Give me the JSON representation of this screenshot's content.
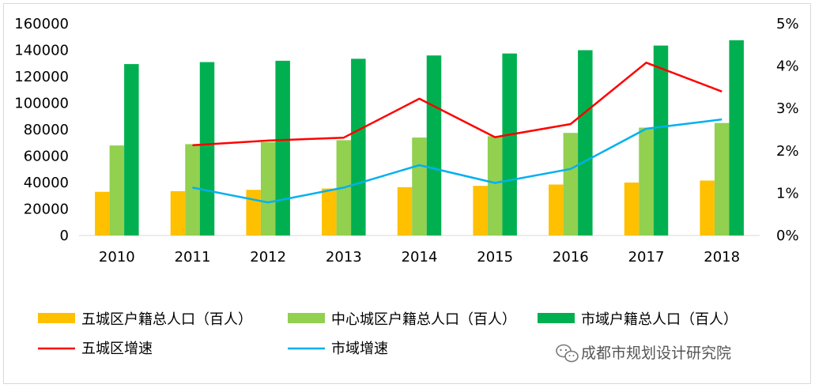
{
  "chart_data": {
    "type": "bar",
    "categories": [
      "2010",
      "2011",
      "2012",
      "2013",
      "2014",
      "2015",
      "2016",
      "2017",
      "2018"
    ],
    "series": [
      {
        "name": "五城区户籍总人口（百人）",
        "kind": "bar",
        "axis": "left",
        "color": "#FFC000",
        "values": [
          33000,
          33500,
          34500,
          35500,
          36500,
          37500,
          38500,
          40000,
          41500
        ]
      },
      {
        "name": "中心城区户籍总人口（百人）",
        "kind": "bar",
        "axis": "left",
        "color": "#92D050",
        "values": [
          68000,
          69000,
          70500,
          72000,
          74000,
          75000,
          77500,
          81500,
          85000
        ]
      },
      {
        "name": "市域户籍总人口（百人）",
        "kind": "bar",
        "axis": "left",
        "color": "#00B050",
        "values": [
          129500,
          131000,
          132000,
          133500,
          136000,
          137500,
          140000,
          143500,
          147500
        ]
      },
      {
        "name": "五城区增速",
        "kind": "line",
        "axis": "right",
        "color": "#FF0000",
        "values": [
          null,
          2.13,
          2.24,
          2.31,
          3.23,
          2.32,
          2.63,
          4.08,
          3.4
        ]
      },
      {
        "name": "市域增速",
        "kind": "line",
        "axis": "right",
        "color": "#00B0F0",
        "values": [
          null,
          1.13,
          0.78,
          1.13,
          1.66,
          1.24,
          1.57,
          2.52,
          2.74
        ]
      }
    ],
    "y_left": {
      "ylim": [
        0,
        160000
      ],
      "ticks": [
        "0",
        "20000",
        "40000",
        "60000",
        "80000",
        "100000",
        "120000",
        "140000",
        "160000"
      ]
    },
    "y_right": {
      "ylim": [
        0,
        5
      ],
      "ticks": [
        "0%",
        "1%",
        "2%",
        "3%",
        "4%",
        "5%"
      ]
    },
    "grid": false,
    "legend_position": "bottom"
  },
  "watermark": {
    "text": "成都市规划设计研究院",
    "icon": "wechat-icon"
  }
}
